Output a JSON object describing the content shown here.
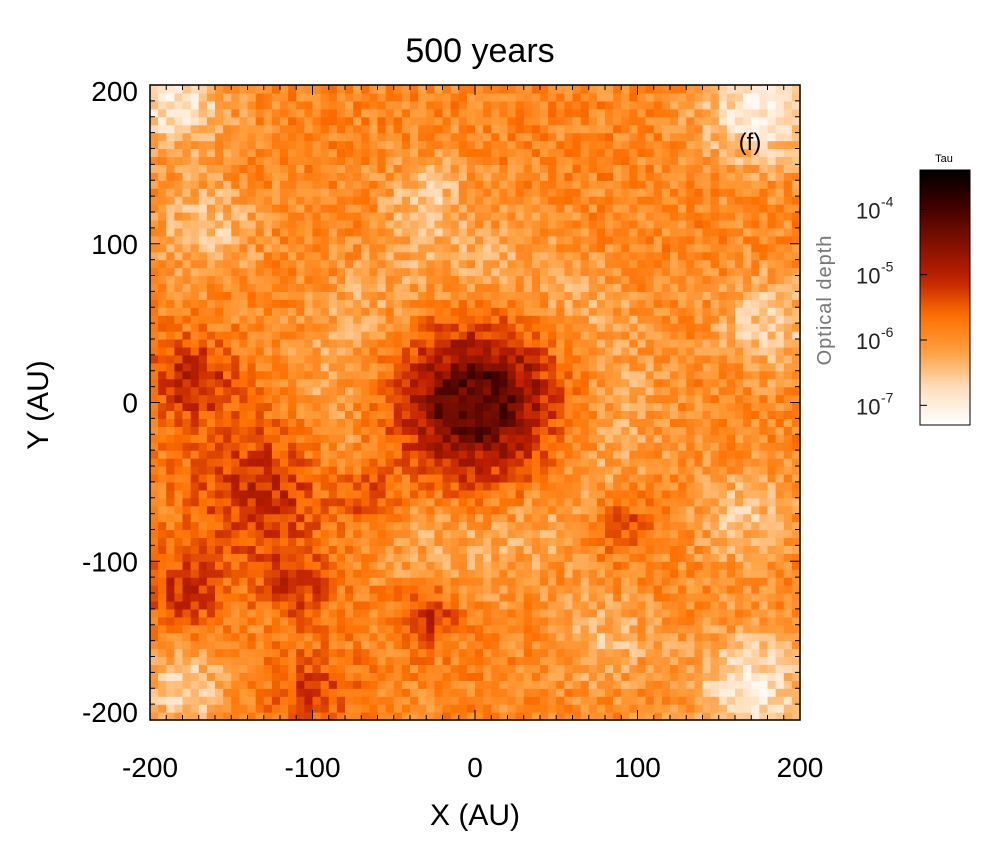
{
  "chart_data": {
    "type": "heatmap",
    "title": "500 years",
    "panel_label": "(f)",
    "xlabel": "X (AU)",
    "ylabel": "Y (AU)",
    "xlim": [
      -200,
      200
    ],
    "ylim": [
      -200,
      200
    ],
    "x_ticks": [
      -200,
      -100,
      0,
      100,
      200
    ],
    "y_ticks": [
      -200,
      -100,
      0,
      100,
      200
    ],
    "x_tick_labels": [
      "-200",
      "-100",
      "0",
      "100",
      "200"
    ],
    "y_tick_labels": [
      "-200",
      "-100",
      "0",
      "100",
      "200"
    ],
    "grid_cells": 80,
    "colorbar": {
      "title": "Tau",
      "label": "Optical depth",
      "scale": "log",
      "range": [
        5e-08,
        0.0004
      ],
      "ticks": [
        1e-07,
        1e-06,
        1e-05,
        0.0001
      ],
      "tick_base": "10",
      "tick_exponents": [
        "-7",
        "-6",
        "-5",
        "-4"
      ],
      "colors": [
        "#ffffff",
        "#ffe0c0",
        "#ffa040",
        "#ff7000",
        "#c02000",
        "#801000",
        "#400000",
        "#000000"
      ]
    },
    "features": {
      "core_center": [
        0,
        0
      ],
      "core_radius_au": 45,
      "core_log_tau_peak": -4.0,
      "background_log_tau": -5.9,
      "clumps": [
        {
          "x": -175,
          "y": 15,
          "r": 25,
          "log_tau": -5.0
        },
        {
          "x": -130,
          "y": -55,
          "r": 45,
          "log_tau": -5.1
        },
        {
          "x": -180,
          "y": -120,
          "r": 25,
          "log_tau": -5.2
        },
        {
          "x": -110,
          "y": -115,
          "r": 20,
          "log_tau": -5.2
        },
        {
          "x": -30,
          "y": -135,
          "r": 18,
          "log_tau": -5.1
        },
        {
          "x": -65,
          "y": -60,
          "r": 20,
          "log_tau": -5.2
        },
        {
          "x": 90,
          "y": -75,
          "r": 20,
          "log_tau": -5.3
        },
        {
          "x": -100,
          "y": -180,
          "r": 25,
          "log_tau": -5.3
        }
      ],
      "voids": [
        {
          "x": 175,
          "y": 185,
          "r": 35,
          "log_tau": -7.0
        },
        {
          "x": -185,
          "y": 190,
          "r": 30,
          "log_tau": -6.9
        },
        {
          "x": 170,
          "y": -180,
          "r": 35,
          "log_tau": -6.9
        },
        {
          "x": -180,
          "y": -180,
          "r": 25,
          "log_tau": -6.7
        },
        {
          "x": -165,
          "y": 110,
          "r": 30,
          "log_tau": -6.5
        },
        {
          "x": 180,
          "y": 50,
          "r": 30,
          "log_tau": -6.6
        },
        {
          "x": -30,
          "y": 130,
          "r": 25,
          "log_tau": -6.5
        },
        {
          "x": 165,
          "y": -70,
          "r": 30,
          "log_tau": -6.5
        },
        {
          "x": 80,
          "y": -150,
          "r": 30,
          "log_tau": -6.4
        }
      ]
    }
  }
}
